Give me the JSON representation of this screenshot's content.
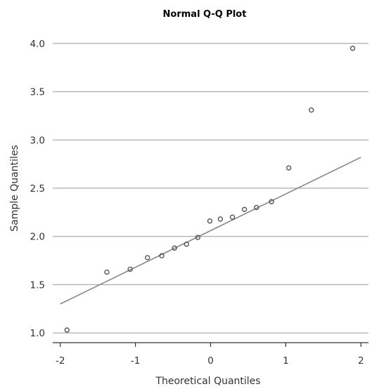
{
  "chart_data": {
    "type": "scatter",
    "title": "Normal Q-Q Plot",
    "xlabel": "Theoretical Quantiles",
    "ylabel": "Sample Quantiles",
    "xlim": [
      -2.1,
      2.1
    ],
    "ylim": [
      0.95,
      4.05
    ],
    "x_ticks": [
      -2,
      -1,
      0,
      1,
      2
    ],
    "x_tick_labels": [
      "-2",
      "-1",
      "0",
      "1",
      "2"
    ],
    "y_ticks": [
      1.0,
      1.5,
      2.0,
      2.5,
      3.0,
      3.5,
      4.0
    ],
    "y_tick_labels": [
      "1.0",
      "1.5",
      "2.0",
      "2.5",
      "3.0",
      "3.5",
      "4.0"
    ],
    "grid": "horizontal",
    "points": [
      {
        "x": -1.91,
        "y": 1.03
      },
      {
        "x": -1.38,
        "y": 1.63
      },
      {
        "x": -1.07,
        "y": 1.66
      },
      {
        "x": -0.84,
        "y": 1.78
      },
      {
        "x": -0.65,
        "y": 1.8
      },
      {
        "x": -0.48,
        "y": 1.88
      },
      {
        "x": -0.32,
        "y": 1.92
      },
      {
        "x": -0.17,
        "y": 1.99
      },
      {
        "x": -0.01,
        "y": 2.16
      },
      {
        "x": 0.13,
        "y": 2.18
      },
      {
        "x": 0.29,
        "y": 2.2
      },
      {
        "x": 0.45,
        "y": 2.28
      },
      {
        "x": 0.61,
        "y": 2.3
      },
      {
        "x": 0.81,
        "y": 2.36
      },
      {
        "x": 1.04,
        "y": 2.71
      },
      {
        "x": 1.34,
        "y": 3.31
      },
      {
        "x": 1.89,
        "y": 3.95
      }
    ],
    "reference_line": {
      "x": [
        -2.0,
        2.0
      ],
      "y": [
        1.3,
        2.82
      ]
    },
    "colors": {
      "points": "#555555",
      "line": "#888888",
      "grid": "#999999",
      "axis": "#333333"
    }
  }
}
